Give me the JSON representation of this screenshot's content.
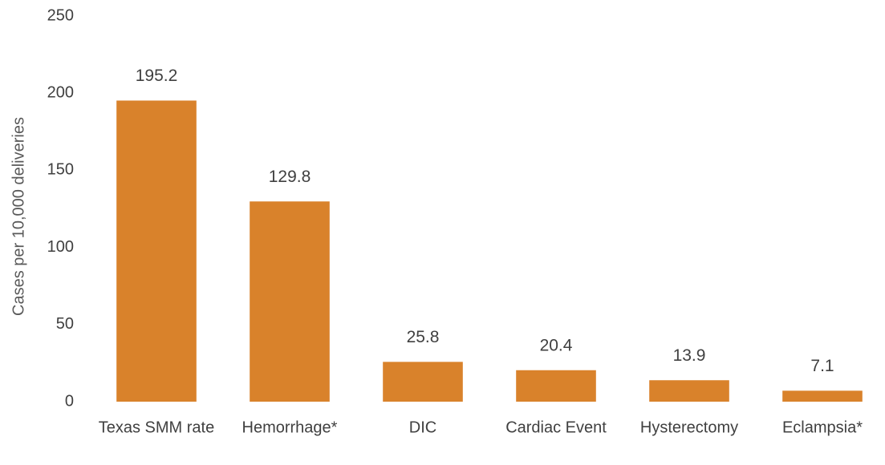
{
  "chart_data": {
    "type": "bar",
    "y_label": "Cases per 10,000 deliveries",
    "categories": [
      "Texas SMM rate",
      "Hemorrhage*",
      "DIC",
      "Cardiac Event",
      "Hysterectomy",
      "Eclampsia*"
    ],
    "values": [
      195.2,
      129.8,
      25.8,
      20.4,
      13.9,
      7.1
    ],
    "color": "#d9822b",
    "ylim": [
      0,
      250
    ],
    "yticks": [
      0,
      50,
      100,
      150,
      200,
      250
    ],
    "grid": false
  }
}
